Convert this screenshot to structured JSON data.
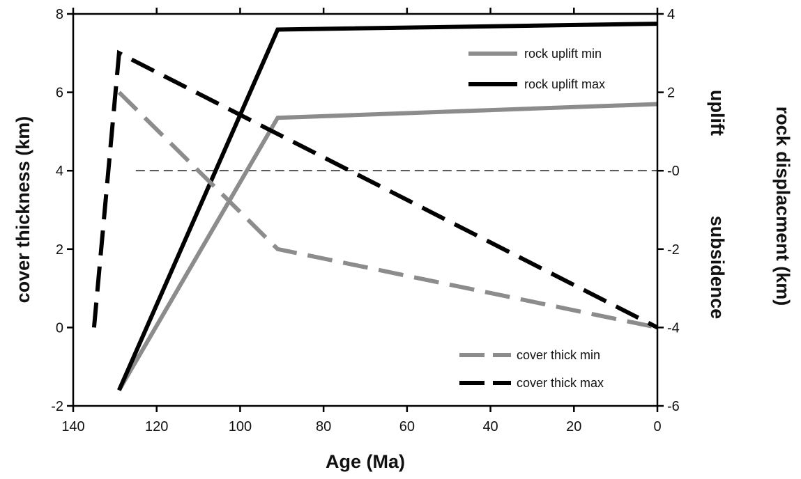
{
  "chart_data": {
    "type": "line",
    "xlabel": "Age (Ma)",
    "ylabel_left": "cover thickness (km)",
    "ylabel_right": "rock displacment (km)",
    "right_sublabels": {
      "upper": "uplift",
      "lower": "subsidence"
    },
    "xlim": [
      140,
      0
    ],
    "ylim_left": [
      -2,
      8
    ],
    "ylim_right": [
      -6,
      4
    ],
    "x_ticks": [
      140,
      120,
      100,
      80,
      60,
      40,
      20,
      0
    ],
    "x_tick_labels": [
      "140",
      "120",
      "100",
      "80",
      "60",
      "40",
      "20",
      "0"
    ],
    "y_left_ticks": [
      -2,
      0,
      2,
      4,
      6,
      8
    ],
    "y_left_tick_labels": [
      "-2",
      "0",
      "2",
      "4",
      "6",
      "8"
    ],
    "y_right_ticks": [
      -6,
      -4,
      -2,
      0,
      2,
      4
    ],
    "y_right_tick_labels": [
      "-6",
      "-4",
      "-2",
      "-0",
      "2",
      "4"
    ],
    "reference_line": {
      "axis": "right",
      "value": 0,
      "x_from": 125,
      "x_to": 0,
      "style": "dashed"
    },
    "series": [
      {
        "name": "rock uplift min",
        "axis": "right",
        "color": "#8c8c8c",
        "dash": "solid",
        "x": [
          129,
          91,
          0
        ],
        "y": [
          -5.6,
          1.35,
          1.7
        ]
      },
      {
        "name": "rock uplift max",
        "axis": "right",
        "color": "#000000",
        "dash": "solid",
        "x": [
          129,
          91,
          0
        ],
        "y": [
          -5.6,
          3.6,
          3.75
        ]
      },
      {
        "name": "cover thick min",
        "axis": "left",
        "color": "#8c8c8c",
        "dash": "dashed",
        "x": [
          129,
          91,
          0
        ],
        "y": [
          6.0,
          2.0,
          0.0
        ]
      },
      {
        "name": "cover thick max",
        "axis": "left",
        "color": "#000000",
        "dash": "dashed",
        "x": [
          135,
          129,
          0
        ],
        "y": [
          0.0,
          7.0,
          0.0
        ]
      }
    ],
    "legend": [
      {
        "label": "rock uplift min",
        "color": "#8c8c8c",
        "dash": "solid"
      },
      {
        "label": "rock uplift max",
        "color": "#000000",
        "dash": "solid"
      },
      {
        "label": "cover thick min",
        "color": "#8c8c8c",
        "dash": "dashed"
      },
      {
        "label": "cover thick max",
        "color": "#000000",
        "dash": "dashed"
      }
    ],
    "grid": false
  }
}
